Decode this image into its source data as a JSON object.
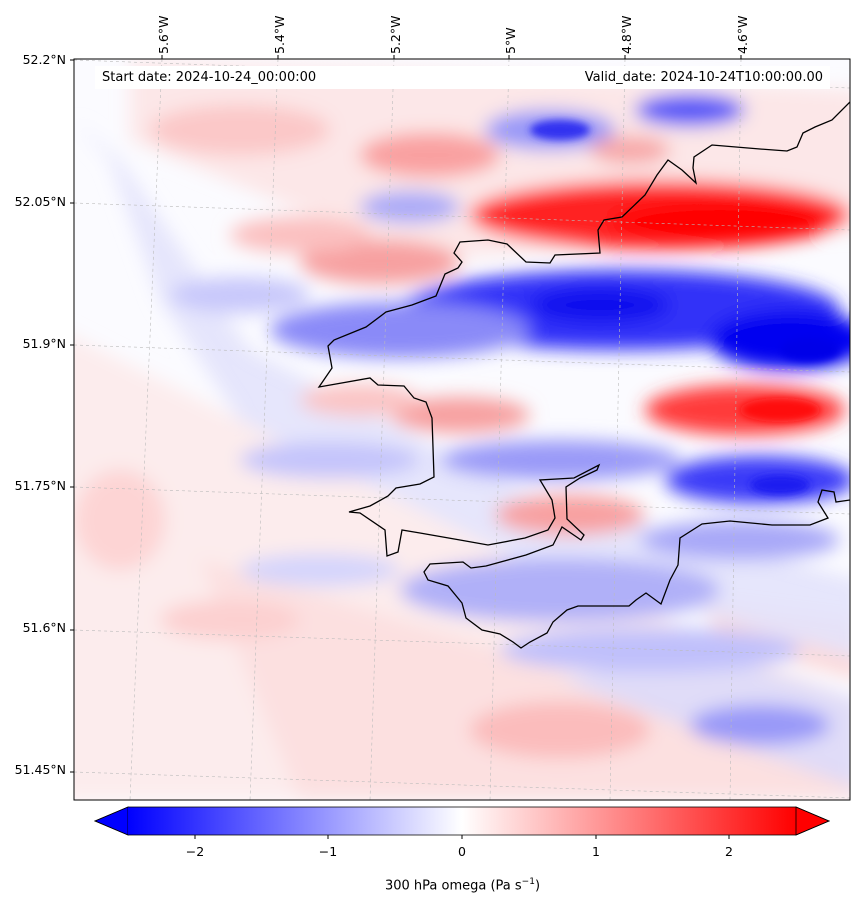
{
  "map": {
    "lat_labels": [
      "52.2°N",
      "52.05°N",
      "51.9°N",
      "51.75°N",
      "51.6°N",
      "51.45°N"
    ],
    "lon_labels": [
      "5.6°W",
      "5.4°W",
      "5.2°W",
      "5°W",
      "4.8°W",
      "4.6°W"
    ],
    "start_date": "Start date: 2024-10-24_00:00:00",
    "valid_date": "Valid_date: 2024-10-24T10:00:00.00",
    "colors": {
      "negative": "#0000ff",
      "neutral": "#ffffff",
      "positive": "#ff0000",
      "coast": "#000000"
    }
  },
  "colorbar": {
    "ticks": [
      "−2",
      "−1",
      "0",
      "1",
      "2"
    ],
    "tick_values": [
      -2,
      -1,
      0,
      1,
      2
    ],
    "range": [
      -2.5,
      2.5
    ],
    "label_prefix": "300 hPa omega (Pa s",
    "label_exp": "−1",
    "label_suffix": ")"
  }
}
